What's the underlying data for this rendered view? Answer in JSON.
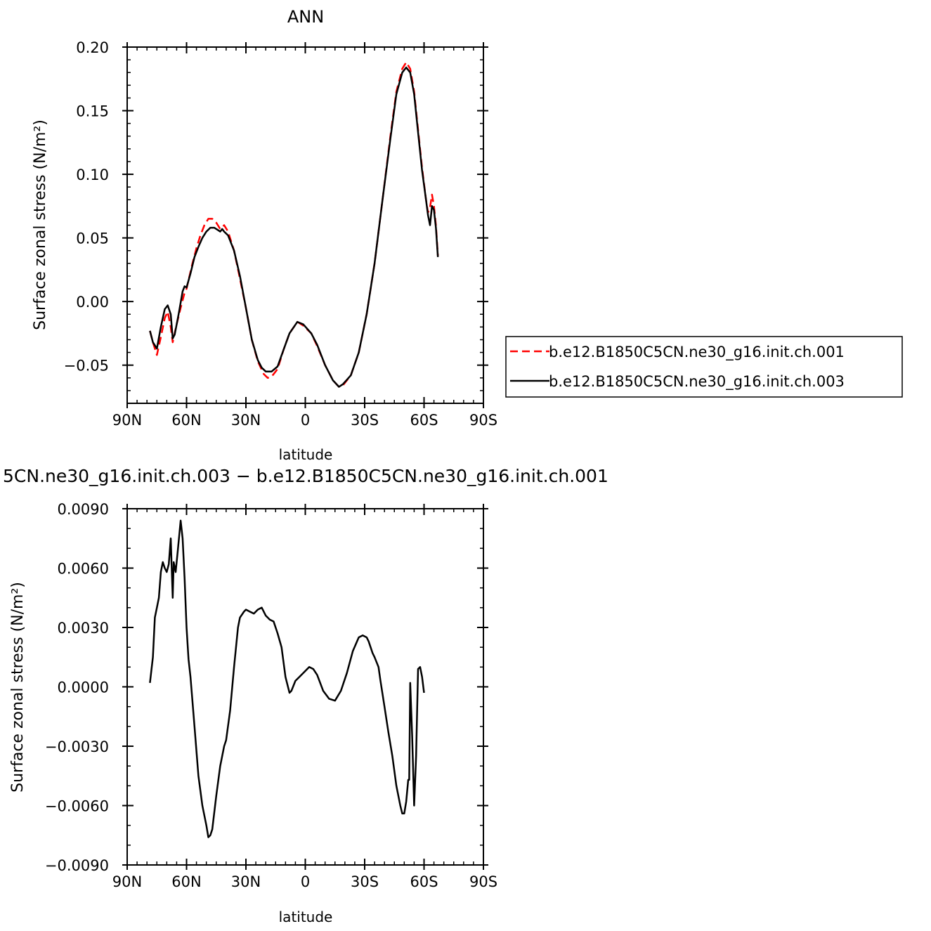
{
  "chart_data": [
    {
      "type": "line",
      "title": "ANN",
      "xlabel": "latitude",
      "ylabel": "Surface zonal stress (N/m²)",
      "xlim": [
        90,
        -90
      ],
      "ylim": [
        -0.08,
        0.2
      ],
      "x_ticks": [
        {
          "value": 90,
          "label": "90N"
        },
        {
          "value": 60,
          "label": "60N"
        },
        {
          "value": 30,
          "label": "30N"
        },
        {
          "value": 0,
          "label": "0"
        },
        {
          "value": -30,
          "label": "30S"
        },
        {
          "value": -60,
          "label": "60S"
        },
        {
          "value": -90,
          "label": "90S"
        }
      ],
      "y_ticks": [
        {
          "value": 0.2,
          "label": "0.20"
        },
        {
          "value": 0.15,
          "label": "0.15"
        },
        {
          "value": 0.1,
          "label": "0.10"
        },
        {
          "value": 0.05,
          "label": "0.05"
        },
        {
          "value": 0.0,
          "label": "0.00"
        },
        {
          "value": -0.05,
          "label": "−0.05"
        }
      ],
      "legend_position": "right",
      "series": [
        {
          "name": "b.e12.B1850C5CN.ne30_g16.init.ch.001",
          "color": "#ff0000",
          "dash": "dashed",
          "points": [
            [
              78.5,
              -0.023
            ],
            [
              77,
              -0.032
            ],
            [
              75,
              -0.042
            ],
            [
              73,
              -0.028
            ],
            [
              71,
              -0.013
            ],
            [
              69.5,
              -0.008
            ],
            [
              68,
              -0.02
            ],
            [
              67,
              -0.032
            ],
            [
              66,
              -0.025
            ],
            [
              65,
              -0.018
            ],
            [
              63,
              -0.005
            ],
            [
              61,
              0.007
            ],
            [
              60,
              0.01
            ],
            [
              57,
              0.03
            ],
            [
              55,
              0.042
            ],
            [
              53,
              0.052
            ],
            [
              51,
              0.06
            ],
            [
              49,
              0.065
            ],
            [
              47,
              0.065
            ],
            [
              45,
              0.062
            ],
            [
              43,
              0.057
            ],
            [
              41,
              0.06
            ],
            [
              39,
              0.055
            ],
            [
              36,
              0.04
            ],
            [
              33,
              0.018
            ],
            [
              30,
              -0.005
            ],
            [
              27,
              -0.03
            ],
            [
              24,
              -0.047
            ],
            [
              21,
              -0.057
            ],
            [
              19,
              -0.06
            ],
            [
              17,
              -0.059
            ],
            [
              14,
              -0.053
            ],
            [
              11,
              -0.038
            ],
            [
              8,
              -0.025
            ],
            [
              4,
              -0.016
            ],
            [
              1,
              -0.019
            ],
            [
              -3,
              -0.025
            ],
            [
              -6,
              -0.035
            ],
            [
              -10,
              -0.05
            ],
            [
              -14,
              -0.062
            ],
            [
              -17,
              -0.067
            ],
            [
              -19,
              -0.066
            ],
            [
              -23,
              -0.058
            ],
            [
              -27,
              -0.04
            ],
            [
              -31,
              -0.01
            ],
            [
              -35,
              0.03
            ],
            [
              -39,
              0.08
            ],
            [
              -43,
              0.13
            ],
            [
              -46,
              0.165
            ],
            [
              -49,
              0.183
            ],
            [
              -51,
              0.188
            ],
            [
              -53,
              0.183
            ],
            [
              -55,
              0.165
            ],
            [
              -57,
              0.135
            ],
            [
              -59,
              0.105
            ],
            [
              -61,
              0.08
            ],
            [
              -62,
              0.07
            ],
            [
              -63,
              0.074
            ],
            [
              -64,
              0.084
            ],
            [
              -65,
              0.075
            ],
            [
              -66,
              0.06
            ],
            [
              -67,
              0.036
            ]
          ]
        },
        {
          "name": "b.e12.B1850C5CN.ne30_g16.init.ch.003",
          "color": "#000000",
          "dash": "solid",
          "points": [
            [
              78.5,
              -0.023
            ],
            [
              77,
              -0.032
            ],
            [
              75,
              -0.037
            ],
            [
              73,
              -0.02
            ],
            [
              71,
              -0.006
            ],
            [
              69.5,
              -0.003
            ],
            [
              68,
              -0.01
            ],
            [
              67,
              -0.029
            ],
            [
              66,
              -0.026
            ],
            [
              64,
              -0.01
            ],
            [
              62,
              0.008
            ],
            [
              61,
              0.012
            ],
            [
              60,
              0.011
            ],
            [
              58,
              0.022
            ],
            [
              56,
              0.035
            ],
            [
              54,
              0.043
            ],
            [
              52,
              0.05
            ],
            [
              50,
              0.055
            ],
            [
              48,
              0.058
            ],
            [
              46,
              0.058
            ],
            [
              44,
              0.056
            ],
            [
              43,
              0.055
            ],
            [
              42,
              0.057
            ],
            [
              41,
              0.055
            ],
            [
              39,
              0.052
            ],
            [
              36,
              0.04
            ],
            [
              33,
              0.02
            ],
            [
              30,
              -0.005
            ],
            [
              27,
              -0.03
            ],
            [
              24,
              -0.046
            ],
            [
              22,
              -0.052
            ],
            [
              20,
              -0.055
            ],
            [
              17,
              -0.055
            ],
            [
              14,
              -0.051
            ],
            [
              11,
              -0.038
            ],
            [
              8,
              -0.025
            ],
            [
              4,
              -0.016
            ],
            [
              1,
              -0.018
            ],
            [
              -3,
              -0.025
            ],
            [
              -6,
              -0.034
            ],
            [
              -10,
              -0.05
            ],
            [
              -14,
              -0.062
            ],
            [
              -17,
              -0.067
            ],
            [
              -19,
              -0.065
            ],
            [
              -23,
              -0.058
            ],
            [
              -27,
              -0.04
            ],
            [
              -31,
              -0.01
            ],
            [
              -35,
              0.03
            ],
            [
              -39,
              0.08
            ],
            [
              -43,
              0.128
            ],
            [
              -46,
              0.163
            ],
            [
              -49,
              0.18
            ],
            [
              -51,
              0.184
            ],
            [
              -53,
              0.18
            ],
            [
              -55,
              0.163
            ],
            [
              -57,
              0.133
            ],
            [
              -59,
              0.103
            ],
            [
              -61,
              0.08
            ],
            [
              -62,
              0.068
            ],
            [
              -63,
              0.06
            ],
            [
              -64,
              0.075
            ],
            [
              -65,
              0.072
            ],
            [
              -66,
              0.058
            ],
            [
              -67,
              0.035
            ]
          ]
        }
      ]
    },
    {
      "type": "line",
      "title": "5CN.ne30_g16.init.ch.003 − b.e12.B1850C5CN.ne30_g16.init.ch.001",
      "xlabel": "latitude",
      "ylabel": "Surface zonal stress (N/m²)",
      "xlim": [
        90,
        -90
      ],
      "ylim": [
        -0.009,
        0.009
      ],
      "x_ticks": [
        {
          "value": 90,
          "label": "90N"
        },
        {
          "value": 60,
          "label": "60N"
        },
        {
          "value": 30,
          "label": "30N"
        },
        {
          "value": 0,
          "label": "0"
        },
        {
          "value": -30,
          "label": "30S"
        },
        {
          "value": -60,
          "label": "60S"
        },
        {
          "value": -90,
          "label": "90S"
        }
      ],
      "y_ticks": [
        {
          "value": 0.009,
          "label": "0.0090"
        },
        {
          "value": 0.006,
          "label": "0.0060"
        },
        {
          "value": 0.003,
          "label": "0.0030"
        },
        {
          "value": 0.0,
          "label": "0.0000"
        },
        {
          "value": -0.003,
          "label": "−0.0030"
        },
        {
          "value": -0.006,
          "label": "−0.0060"
        },
        {
          "value": -0.009,
          "label": "−0.0090"
        }
      ],
      "series": [
        {
          "color": "#000000",
          "dash": "solid",
          "points": [
            [
              78.5,
              0.0002
            ],
            [
              77,
              0.0015
            ],
            [
              76,
              0.0035
            ],
            [
              75,
              0.004
            ],
            [
              74,
              0.0045
            ],
            [
              73,
              0.0058
            ],
            [
              72,
              0.0063
            ],
            [
              71,
              0.006
            ],
            [
              70,
              0.0058
            ],
            [
              69,
              0.0062
            ],
            [
              68,
              0.0075
            ],
            [
              67,
              0.0045
            ],
            [
              66.5,
              0.0063
            ],
            [
              65.5,
              0.0058
            ],
            [
              64.5,
              0.0068
            ],
            [
              63,
              0.0084
            ],
            [
              62,
              0.0075
            ],
            [
              61,
              0.0055
            ],
            [
              60,
              0.003
            ],
            [
              59,
              0.0014
            ],
            [
              58,
              0.0005
            ],
            [
              56,
              -0.002
            ],
            [
              54,
              -0.0045
            ],
            [
              52,
              -0.006
            ],
            [
              50,
              -0.007
            ],
            [
              49,
              -0.0076
            ],
            [
              48,
              -0.0075
            ],
            [
              47,
              -0.0072
            ],
            [
              45,
              -0.0055
            ],
            [
              43,
              -0.004
            ],
            [
              41,
              -0.003
            ],
            [
              40,
              -0.0027
            ],
            [
              38,
              -0.0012
            ],
            [
              36,
              0.001
            ],
            [
              34,
              0.003
            ],
            [
              33,
              0.0035
            ],
            [
              31,
              0.0038
            ],
            [
              30,
              0.0039
            ],
            [
              28,
              0.0038
            ],
            [
              26,
              0.0037
            ],
            [
              24,
              0.0039
            ],
            [
              22,
              0.004
            ],
            [
              20,
              0.0036
            ],
            [
              18,
              0.0034
            ],
            [
              16,
              0.0033
            ],
            [
              14,
              0.0027
            ],
            [
              12,
              0.002
            ],
            [
              10,
              0.0005
            ],
            [
              8,
              -0.0003
            ],
            [
              7,
              -0.0002
            ],
            [
              5,
              0.0003
            ],
            [
              3,
              0.0005
            ],
            [
              1,
              0.0007
            ],
            [
              -2,
              0.001
            ],
            [
              -4,
              0.0009
            ],
            [
              -6,
              0.0006
            ],
            [
              -9,
              -0.0002
            ],
            [
              -12,
              -0.0006
            ],
            [
              -15,
              -0.0007
            ],
            [
              -18,
              -0.0002
            ],
            [
              -21,
              0.0007
            ],
            [
              -24,
              0.0018
            ],
            [
              -27,
              0.0025
            ],
            [
              -29,
              0.0026
            ],
            [
              -31,
              0.0025
            ],
            [
              -32,
              0.0023
            ],
            [
              -34,
              0.0017
            ],
            [
              -35,
              0.0015
            ],
            [
              -37,
              0.001
            ],
            [
              -38,
              0.0003
            ],
            [
              -40,
              -0.001
            ],
            [
              -42,
              -0.0023
            ],
            [
              -44,
              -0.0035
            ],
            [
              -46,
              -0.005
            ],
            [
              -48,
              -0.006
            ],
            [
              -49,
              -0.0064
            ],
            [
              -50,
              -0.0064
            ],
            [
              -51,
              -0.0058
            ],
            [
              -52,
              -0.0047
            ],
            [
              -52.5,
              -0.0047
            ],
            [
              -53,
              0.0002
            ],
            [
              -54,
              -0.0025
            ],
            [
              -55,
              -0.006
            ],
            [
              -56,
              -0.0035
            ],
            [
              -57,
              0.0009
            ],
            [
              -58,
              0.001
            ],
            [
              -59,
              0.0005
            ],
            [
              -60,
              -0.0003
            ]
          ]
        }
      ]
    }
  ]
}
